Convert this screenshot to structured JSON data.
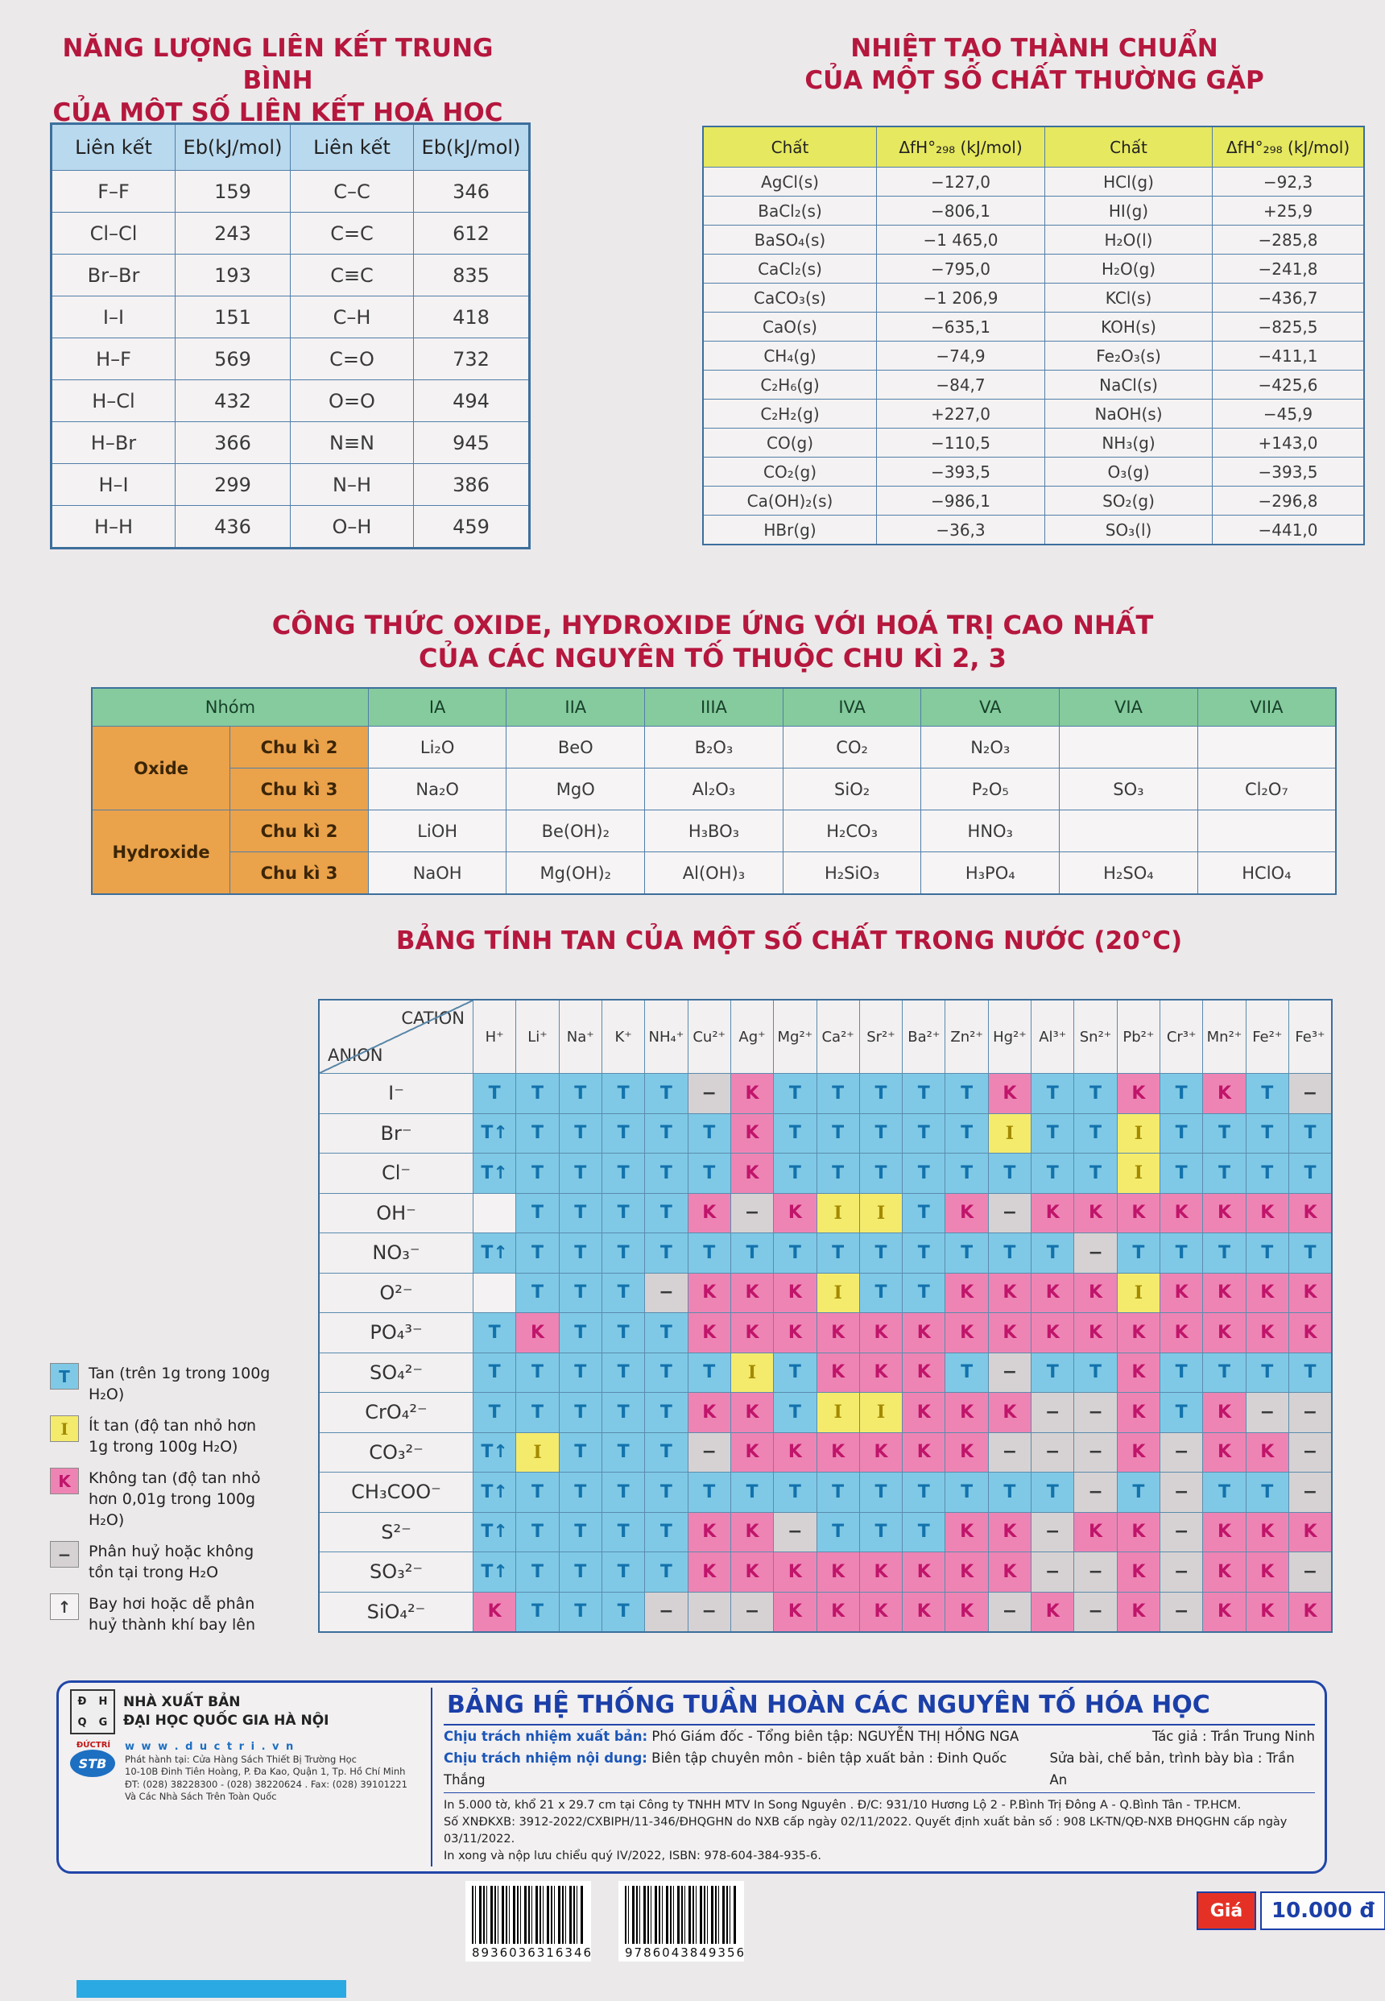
{
  "titles": {
    "bond_1": "NĂNG LƯỢNG LIÊN KẾT TRUNG BÌNH",
    "bond_2": "CỦA MỘT SỐ LIÊN KẾT HOÁ HỌC",
    "enthalpy_1": "NHIỆT TẠO THÀNH CHUẨN",
    "enthalpy_2": "CỦA MỘT SỐ CHẤT THƯỜNG GẶP",
    "oxide_1": "CÔNG THỨC OXIDE, HYDROXIDE ỨNG VỚI HOÁ TRỊ CAO NHẤT",
    "oxide_2": "CỦA CÁC NGUYÊN TỐ THUỘC CHU KÌ 2, 3",
    "solubility": "BẢNG TÍNH TAN CỦA MỘT SỐ CHẤT TRONG NƯỚC (20°C)"
  },
  "bond_table": {
    "headers": [
      "Liên kết",
      "Eb(kJ/mol)",
      "Liên kết",
      "Eb(kJ/mol)"
    ],
    "rows": [
      [
        "F–F",
        "159",
        "C–C",
        "346"
      ],
      [
        "Cl–Cl",
        "243",
        "C=C",
        "612"
      ],
      [
        "Br–Br",
        "193",
        "C≡C",
        "835"
      ],
      [
        "I–I",
        "151",
        "C–H",
        "418"
      ],
      [
        "H–F",
        "569",
        "C=O",
        "732"
      ],
      [
        "H–Cl",
        "432",
        "O=O",
        "494"
      ],
      [
        "H–Br",
        "366",
        "N≡N",
        "945"
      ],
      [
        "H–I",
        "299",
        "N–H",
        "386"
      ],
      [
        "H–H",
        "436",
        "O–H",
        "459"
      ]
    ]
  },
  "enthalpy_table": {
    "headers": [
      "Chất",
      "ΔfH°₂₉₈ (kJ/mol)",
      "Chất",
      "ΔfH°₂₉₈ (kJ/mol)"
    ],
    "rows": [
      [
        "AgCl(s)",
        "−127,0",
        "HCl(g)",
        "−92,3"
      ],
      [
        "BaCl₂(s)",
        "−806,1",
        "HI(g)",
        "+25,9"
      ],
      [
        "BaSO₄(s)",
        "−1 465,0",
        "H₂O(l)",
        "−285,8"
      ],
      [
        "CaCl₂(s)",
        "−795,0",
        "H₂O(g)",
        "−241,8"
      ],
      [
        "CaCO₃(s)",
        "−1 206,9",
        "KCl(s)",
        "−436,7"
      ],
      [
        "CaO(s)",
        "−635,1",
        "KOH(s)",
        "−825,5"
      ],
      [
        "CH₄(g)",
        "−74,9",
        "Fe₂O₃(s)",
        "−411,1"
      ],
      [
        "C₂H₆(g)",
        "−84,7",
        "NaCl(s)",
        "−425,6"
      ],
      [
        "C₂H₂(g)",
        "+227,0",
        "NaOH(s)",
        "−45,9"
      ],
      [
        "CO(g)",
        "−110,5",
        "NH₃(g)",
        "+143,0"
      ],
      [
        "CO₂(g)",
        "−393,5",
        "O₃(g)",
        "−393,5"
      ],
      [
        "Ca(OH)₂(s)",
        "−986,1",
        "SO₂(g)",
        "−296,8"
      ],
      [
        "HBr(g)",
        "−36,3",
        "SO₃(l)",
        "−441,0"
      ]
    ]
  },
  "oxide_table": {
    "corner": "Nhóm",
    "groups": [
      "IA",
      "IIA",
      "IIIA",
      "IVA",
      "VA",
      "VIA",
      "VIIA"
    ],
    "sections": [
      "Oxide",
      "Hydroxide"
    ],
    "rows": [
      {
        "period": "Chu kì 2",
        "cells": [
          "Li₂O",
          "BeO",
          "B₂O₃",
          "CO₂",
          "N₂O₃",
          "",
          ""
        ]
      },
      {
        "period": "Chu kì 3",
        "cells": [
          "Na₂O",
          "MgO",
          "Al₂O₃",
          "SiO₂",
          "P₂O₅",
          "SO₃",
          "Cl₂O₇"
        ]
      },
      {
        "period": "Chu kì 2",
        "cells": [
          "LiOH",
          "Be(OH)₂",
          "H₃BO₃",
          "H₂CO₃",
          "HNO₃",
          "",
          ""
        ]
      },
      {
        "period": "Chu kì 3",
        "cells": [
          "NaOH",
          "Mg(OH)₂",
          "Al(OH)₃",
          "H₂SiO₃",
          "H₃PO₄",
          "H₂SO₄",
          "HClO₄"
        ]
      }
    ]
  },
  "solubility_table": {
    "corner_top": "CATION",
    "corner_bottom": "ANION",
    "cations": [
      "H⁺",
      "Li⁺",
      "Na⁺",
      "K⁺",
      "NH₄⁺",
      "Cu²⁺",
      "Ag⁺",
      "Mg²⁺",
      "Ca²⁺",
      "Sr²⁺",
      "Ba²⁺",
      "Zn²⁺",
      "Hg²⁺",
      "Al³⁺",
      "Sn²⁺",
      "Pb²⁺",
      "Cr³⁺",
      "Mn²⁺",
      "Fe²⁺",
      "Fe³⁺"
    ],
    "rows": [
      {
        "anion": "I⁻",
        "cells": [
          "T",
          "T",
          "T",
          "T",
          "T",
          "-",
          "K",
          "T",
          "T",
          "T",
          "T",
          "T",
          "K",
          "T",
          "T",
          "K",
          "T",
          "K",
          "T",
          "-"
        ]
      },
      {
        "anion": "Br⁻",
        "cells": [
          "T↑",
          "T",
          "T",
          "T",
          "T",
          "T",
          "K",
          "T",
          "T",
          "T",
          "T",
          "T",
          "I",
          "T",
          "T",
          "I",
          "T",
          "T",
          "T",
          "T"
        ]
      },
      {
        "anion": "Cl⁻",
        "cells": [
          "T↑",
          "T",
          "T",
          "T",
          "T",
          "T",
          "K",
          "T",
          "T",
          "T",
          "T",
          "T",
          "T",
          "T",
          "T",
          "I",
          "T",
          "T",
          "T",
          "T"
        ]
      },
      {
        "anion": "OH⁻",
        "cells": [
          "",
          "T",
          "T",
          "T",
          "T",
          "K",
          "-",
          "K",
          "I",
          "I",
          "T",
          "K",
          "-",
          "K",
          "K",
          "K",
          "K",
          "K",
          "K",
          "K"
        ]
      },
      {
        "anion": "NO₃⁻",
        "cells": [
          "T↑",
          "T",
          "T",
          "T",
          "T",
          "T",
          "T",
          "T",
          "T",
          "T",
          "T",
          "T",
          "T",
          "T",
          "-",
          "T",
          "T",
          "T",
          "T",
          "T"
        ]
      },
      {
        "anion": "O²⁻",
        "cells": [
          "",
          "T",
          "T",
          "T",
          "-",
          "K",
          "K",
          "K",
          "I",
          "T",
          "T",
          "K",
          "K",
          "K",
          "K",
          "I",
          "K",
          "K",
          "K",
          "K"
        ]
      },
      {
        "anion": "PO₄³⁻",
        "cells": [
          "T",
          "K",
          "T",
          "T",
          "T",
          "K",
          "K",
          "K",
          "K",
          "K",
          "K",
          "K",
          "K",
          "K",
          "K",
          "K",
          "K",
          "K",
          "K",
          "K"
        ]
      },
      {
        "anion": "SO₄²⁻",
        "cells": [
          "T",
          "T",
          "T",
          "T",
          "T",
          "T",
          "I",
          "T",
          "K",
          "K",
          "K",
          "T",
          "-",
          "T",
          "T",
          "K",
          "T",
          "T",
          "T",
          "T"
        ]
      },
      {
        "anion": "CrO₄²⁻",
        "cells": [
          "T",
          "T",
          "T",
          "T",
          "T",
          "K",
          "K",
          "T",
          "I",
          "I",
          "K",
          "K",
          "K",
          "-",
          "-",
          "K",
          "T",
          "K",
          "-",
          "-"
        ]
      },
      {
        "anion": "CO₃²⁻",
        "cells": [
          "T↑",
          "I",
          "T",
          "T",
          "T",
          "-",
          "K",
          "K",
          "K",
          "K",
          "K",
          "K",
          "-",
          "-",
          "-",
          "K",
          "-",
          "K",
          "K",
          "-"
        ]
      },
      {
        "anion": "CH₃COO⁻",
        "cells": [
          "T↑",
          "T",
          "T",
          "T",
          "T",
          "T",
          "T",
          "T",
          "T",
          "T",
          "T",
          "T",
          "T",
          "T",
          "-",
          "T",
          "-",
          "T",
          "T",
          "-"
        ]
      },
      {
        "anion": "S²⁻",
        "cells": [
          "T↑",
          "T",
          "T",
          "T",
          "T",
          "K",
          "K",
          "-",
          "T",
          "T",
          "T",
          "K",
          "K",
          "-",
          "K",
          "K",
          "-",
          "K",
          "K",
          "K"
        ]
      },
      {
        "anion": "SO₃²⁻",
        "cells": [
          "T↑",
          "T",
          "T",
          "T",
          "T",
          "K",
          "K",
          "K",
          "K",
          "K",
          "K",
          "K",
          "K",
          "-",
          "-",
          "K",
          "-",
          "K",
          "K",
          "-"
        ]
      },
      {
        "anion": "SiO₄²⁻",
        "cells": [
          "K",
          "T",
          "T",
          "T",
          "-",
          "-",
          "-",
          "K",
          "K",
          "K",
          "K",
          "K",
          "-",
          "K",
          "-",
          "K",
          "-",
          "K",
          "K",
          "K"
        ]
      }
    ]
  },
  "legend": {
    "items": [
      {
        "code": "T",
        "label": "Tan (trên 1g trong 100g H₂O)"
      },
      {
        "code": "I",
        "label": "Ít tan (độ tan nhỏ hơn 1g trong 100g H₂O)"
      },
      {
        "code": "K",
        "label": "Không tan (độ tan nhỏ hơn 0,01g trong 100g H₂O)"
      },
      {
        "code": "-",
        "label": "Phân huỷ hoặc không tồn tại trong H₂O"
      },
      {
        "code": "↑",
        "label": "Bay hơi hoặc dễ phân huỷ thành khí bay lên"
      }
    ]
  },
  "footer": {
    "publisher_line1": "NHÀ XUẤT BẢN",
    "publisher_line2": "ĐẠI HỌC QUỐC GIA HÀ NỘI",
    "publisher_logo_letters": "ĐHQG",
    "publisher_logo_caption": "HÀ NỘI",
    "ductri_logo_text": "STB",
    "ductri_logo_caption": "ĐỨCTRÍ",
    "website": "w w w . d u c t r i . v n",
    "distribution_1": "Phát hành tại: Cửa Hàng Sách Thiết Bị Trường Học",
    "distribution_2": "10-10B Đinh Tiên Hoàng, P. Đa Kao, Quận 1, Tp. Hồ Chí Minh",
    "distribution_3": "ĐT: (028) 38228300 - (028) 38220624 . Fax: (028) 39101221",
    "distribution_4": "Và Các Nhà Sách Trên Toàn Quốc",
    "main_title": "BẢNG HỆ THỐNG TUẦN HOÀN CÁC NGUYÊN TỐ HÓA HỌC",
    "resp_label_1": "Chịu trách nhiệm xuất bản:",
    "resp_text_1": "Phó Giám đốc - Tổng biên tập: NGUYỄN THỊ HỒNG NGA",
    "author": "Tác giả : Trần Trung Ninh",
    "resp_label_2": "Chịu trách nhiệm nội dung:",
    "resp_text_2": "Biên tập chuyên môn - biên tập xuất bản : Đinh Quốc Thắng",
    "editor": "Sửa bài, chế bản, trình bày bìa : Trần An",
    "fine_print_1": "In 5.000 tờ, khổ 21 x 29.7 cm tại Công ty TNHH MTV In Song Nguyên . Đ/C: 931/10 Hương Lộ 2 - P.Bình Trị Đông A - Q.Bình Tân - TP.HCM.",
    "fine_print_2": "Số XNĐKXB: 3912-2022/CXBIPH/11-346/ĐHQGHN do NXB cấp ngày 02/11/2022. Quyết định xuất bản số : 908 LK-TN/QĐ-NXB ĐHQGHN cấp ngày 03/11/2022.",
    "fine_print_3": "In xong và nộp lưu chiểu quý IV/2022, ISBN: 978-604-384-935-6."
  },
  "barcodes": {
    "left_number": "8936036316346",
    "right_number": "9786043849356"
  },
  "price": {
    "label": "Giá",
    "amount": "10.000 đ"
  },
  "colors": {
    "title_red": "#b5173d",
    "tan_blue": "#7fc9e6",
    "it_tan_yellow": "#f4eb6d",
    "khong_tan_pink": "#ee84b4",
    "phan_huy_gray": "#d6d2d3",
    "footer_blue": "#1b3fa8",
    "price_red": "#e53125"
  }
}
